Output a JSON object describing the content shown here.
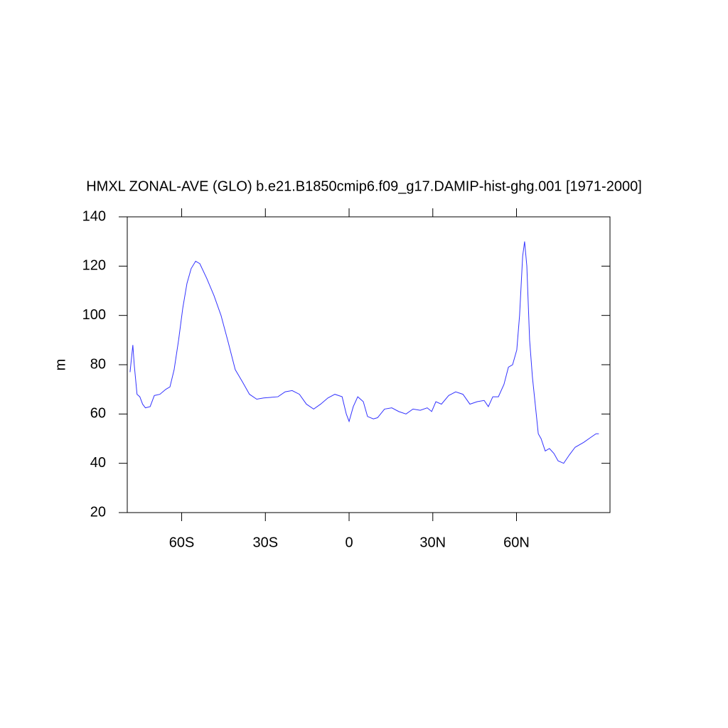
{
  "chart_data": {
    "type": "line",
    "title": "HMXL ZONAL-AVE (GLO) b.e21.B1850cmip6.f09_g17.DAMIP-hist-ghg.001 [1971-2000]",
    "y_label": "m",
    "x": [
      -78.5,
      -77.5,
      -77,
      -76,
      -75,
      -74,
      -73,
      -71.3,
      -69.8,
      -67.8,
      -65.7,
      -64.2,
      -62.7,
      -61.1,
      -59.6,
      -58.1,
      -56.6,
      -55,
      -53.5,
      -51,
      -48.4,
      -45.9,
      -43.3,
      -40.8,
      -38.2,
      -35.7,
      -33.1,
      -30.6,
      -25.5,
      -22.9,
      -20.4,
      -17.8,
      -15.3,
      -12.7,
      -10.2,
      -7.6,
      -5.1,
      -2.5,
      -1,
      0,
      1.5,
      3.1,
      5.1,
      6.6,
      8.7,
      10.2,
      12.7,
      15.3,
      17.8,
      20.4,
      22.9,
      25.5,
      28,
      29.6,
      31.1,
      33.1,
      35.7,
      38.2,
      40.8,
      43.3,
      45.9,
      48.4,
      49.9,
      51.5,
      53.5,
      55.5,
      57.1,
      58.6,
      60.1,
      61.1,
      62.2,
      62.9,
      63.7,
      64.7,
      65.7,
      66.8,
      67.8,
      68.8,
      70.3,
      71.8,
      73.4,
      74.9,
      76.9,
      79,
      81,
      84.1,
      86.6,
      88.5,
      89.5
    ],
    "series": [
      {
        "name": "HMXL",
        "color": "#3333ff",
        "values": [
          77,
          88,
          80,
          68,
          67,
          64,
          62.5,
          63,
          67.5,
          68,
          70,
          71,
          78,
          90,
          103,
          113,
          119,
          122,
          121,
          115,
          108,
          100,
          89,
          78,
          73,
          68,
          66,
          66.5,
          67,
          69,
          69.5,
          68,
          64,
          62,
          64,
          66.5,
          68,
          67,
          60,
          57,
          63,
          67,
          65,
          59,
          58,
          58.5,
          62,
          62.5,
          61,
          60,
          62,
          61.5,
          62.5,
          61,
          65,
          64,
          67.5,
          69,
          68,
          64,
          65,
          65.5,
          63,
          67,
          67,
          72,
          79,
          80,
          86,
          100,
          124,
          130,
          120,
          90,
          75,
          63,
          52,
          50,
          45,
          46,
          44,
          41,
          40,
          43.5,
          46.5,
          48.5,
          50.5,
          52,
          52
        ]
      }
    ],
    "xlim": [
      -79.5,
      93.5
    ],
    "ylim": [
      20,
      140
    ],
    "xticks": [
      {
        "value": -60,
        "label": "60S"
      },
      {
        "value": -30,
        "label": "30S"
      },
      0,
      {
        "value": 30,
        "label": "30N"
      },
      {
        "value": 60,
        "label": "60N"
      }
    ],
    "yticks": [
      20,
      40,
      60,
      80,
      100,
      120,
      140
    ]
  }
}
